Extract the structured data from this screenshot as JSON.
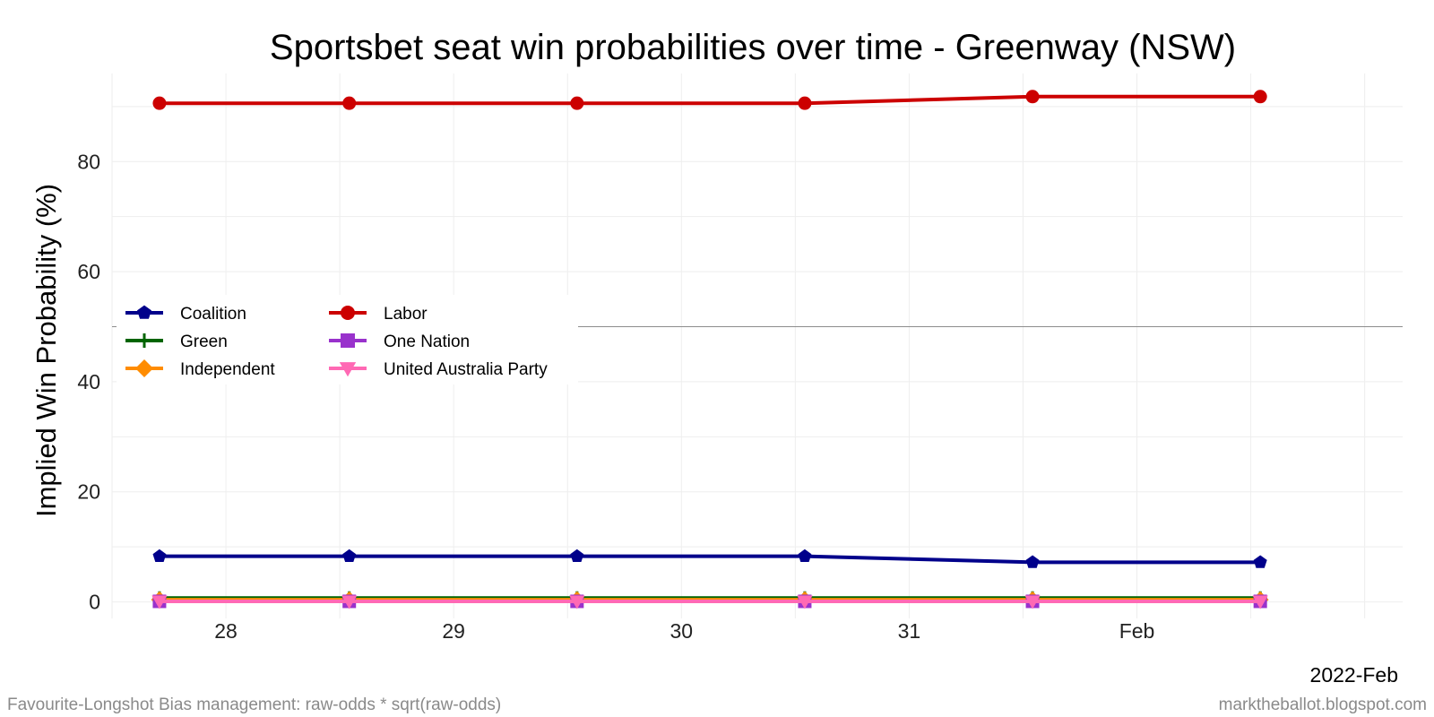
{
  "chart_data": {
    "type": "line",
    "title": "Sportsbet seat win probabilities over time - Greenway (NSW)",
    "xlabel": "",
    "ylabel": "Implied Win Probability (%)",
    "x_axis_corner_label": "2022-Feb",
    "x": [
      "2022-01-27 17:00",
      "2022-01-28 13:00",
      "2022-01-29 13:00",
      "2022-01-30 13:00",
      "2022-01-31 13:00",
      "2022-02-01 13:00"
    ],
    "x_ticks": [
      "28",
      "29",
      "30",
      "31",
      "Feb"
    ],
    "y_ticks": [
      0,
      20,
      40,
      60,
      80
    ],
    "ylim": [
      -3,
      96
    ],
    "reference_line_y": 50,
    "grid": true,
    "legend_position": "left",
    "series": [
      {
        "name": "Coalition",
        "color": "#00008B",
        "marker": "pentagon",
        "values": [
          8.3,
          8.3,
          8.3,
          8.3,
          7.2,
          7.2
        ]
      },
      {
        "name": "Green",
        "color": "#006400",
        "marker": "plus",
        "values": [
          0.7,
          0.7,
          0.7,
          0.7,
          0.7,
          0.7
        ]
      },
      {
        "name": "Independent",
        "color": "#FF8C00",
        "marker": "diamond",
        "values": [
          0.4,
          0.4,
          0.4,
          0.4,
          0.4,
          0.4
        ]
      },
      {
        "name": "Labor",
        "color": "#CC0000",
        "marker": "circle",
        "values": [
          90.6,
          90.6,
          90.6,
          90.6,
          91.8,
          91.8
        ]
      },
      {
        "name": "One Nation",
        "color": "#9932CC",
        "marker": "square",
        "values": [
          0.1,
          0.1,
          0.1,
          0.1,
          0.1,
          0.1
        ]
      },
      {
        "name": "United Australia Party",
        "color": "#FF69B4",
        "marker": "triangle-down",
        "values": [
          0.1,
          0.1,
          0.1,
          0.1,
          0.1,
          0.1
        ]
      }
    ]
  },
  "caption_left": "Favourite-Longshot Bias management: raw-odds * sqrt(raw-odds)",
  "caption_right": "marktheballot.blogspot.com"
}
